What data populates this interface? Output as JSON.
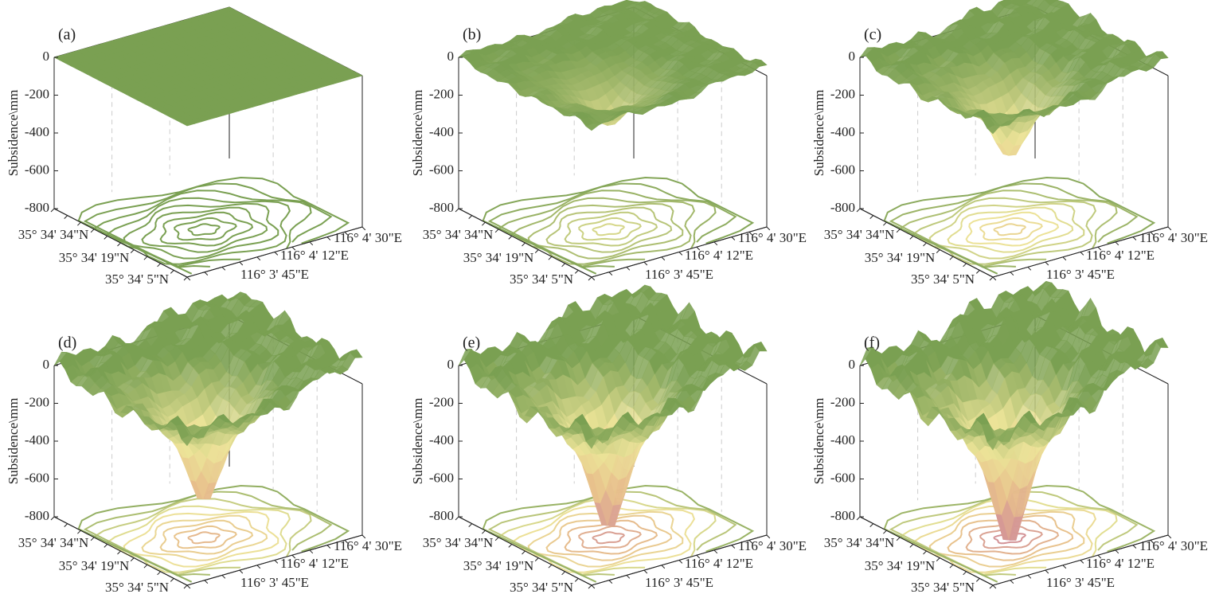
{
  "chart_data": [
    {
      "type": "surface3d",
      "label": "(a)",
      "zlabel": "Subsidence\\mm",
      "zlim": [
        -800,
        0
      ],
      "zticks": [
        0,
        -200,
        -400,
        -600,
        -800
      ],
      "lat_labels": [
        "35° 34' 34\"N",
        "35° 34' 19\"N",
        "35° 34' 5\"N"
      ],
      "lon_labels": [
        "116° 3' 45\"E",
        "116° 4' 12\"E",
        "116° 4' 30\"E"
      ],
      "min_subsidence": 0
    },
    {
      "type": "surface3d",
      "label": "(b)",
      "zlabel": "Subsidence\\mm",
      "zlim": [
        -800,
        0
      ],
      "zticks": [
        0,
        -200,
        -400,
        -600,
        -800
      ],
      "lat_labels": [
        "35° 34' 34\"N",
        "35° 34' 19\"N",
        "35° 34' 5\"N"
      ],
      "lon_labels": [
        "116° 3' 45\"E",
        "116° 4' 12\"E",
        "116° 4' 30\"E"
      ],
      "min_subsidence": -250
    },
    {
      "type": "surface3d",
      "label": "(c)",
      "zlabel": "Subsidence\\mm",
      "zlim": [
        -800,
        0
      ],
      "zticks": [
        0,
        -200,
        -400,
        -600,
        -800
      ],
      "lat_labels": [
        "35° 34' 34\"N",
        "35° 34' 19\"N",
        "35° 34' 5\"N"
      ],
      "lon_labels": [
        "116° 3' 45\"E",
        "116° 4' 12\"E",
        "116° 4' 30\"E"
      ],
      "min_subsidence": -420
    },
    {
      "type": "surface3d",
      "label": "(d)",
      "zlabel": "Subsidence\\mm",
      "zlim": [
        -800,
        0
      ],
      "zticks": [
        0,
        -200,
        -400,
        -600,
        -800
      ],
      "lat_labels": [
        "35° 34' 34\"N",
        "35° 34' 19\"N",
        "35° 34' 5\"N"
      ],
      "lon_labels": [
        "116° 3' 45\"E",
        "116° 4' 12\"E",
        "116° 4' 30\"E"
      ],
      "min_subsidence": -620
    },
    {
      "type": "surface3d",
      "label": "(e)",
      "zlabel": "Subsidence\\mm",
      "zlim": [
        -800,
        0
      ],
      "zticks": [
        0,
        -200,
        -400,
        -600,
        -800
      ],
      "lat_labels": [
        "35° 34' 34\"N",
        "35° 34' 19\"N",
        "35° 34' 5\"N"
      ],
      "lon_labels": [
        "116° 3' 45\"E",
        "116° 4' 12\"E",
        "116° 4' 30\"E"
      ],
      "min_subsidence": -770
    },
    {
      "type": "surface3d",
      "label": "(f)",
      "zlabel": "Subsidence\\mm",
      "zlim": [
        -800,
        0
      ],
      "zticks": [
        0,
        -200,
        -400,
        -600,
        -800
      ],
      "lat_labels": [
        "35° 34' 34\"N",
        "35° 34' 19\"N",
        "35° 34' 5\"N"
      ],
      "lon_labels": [
        "116° 3' 45\"E",
        "116° 4' 12\"E",
        "116° 4' 30\"E"
      ],
      "min_subsidence": -850
    }
  ]
}
